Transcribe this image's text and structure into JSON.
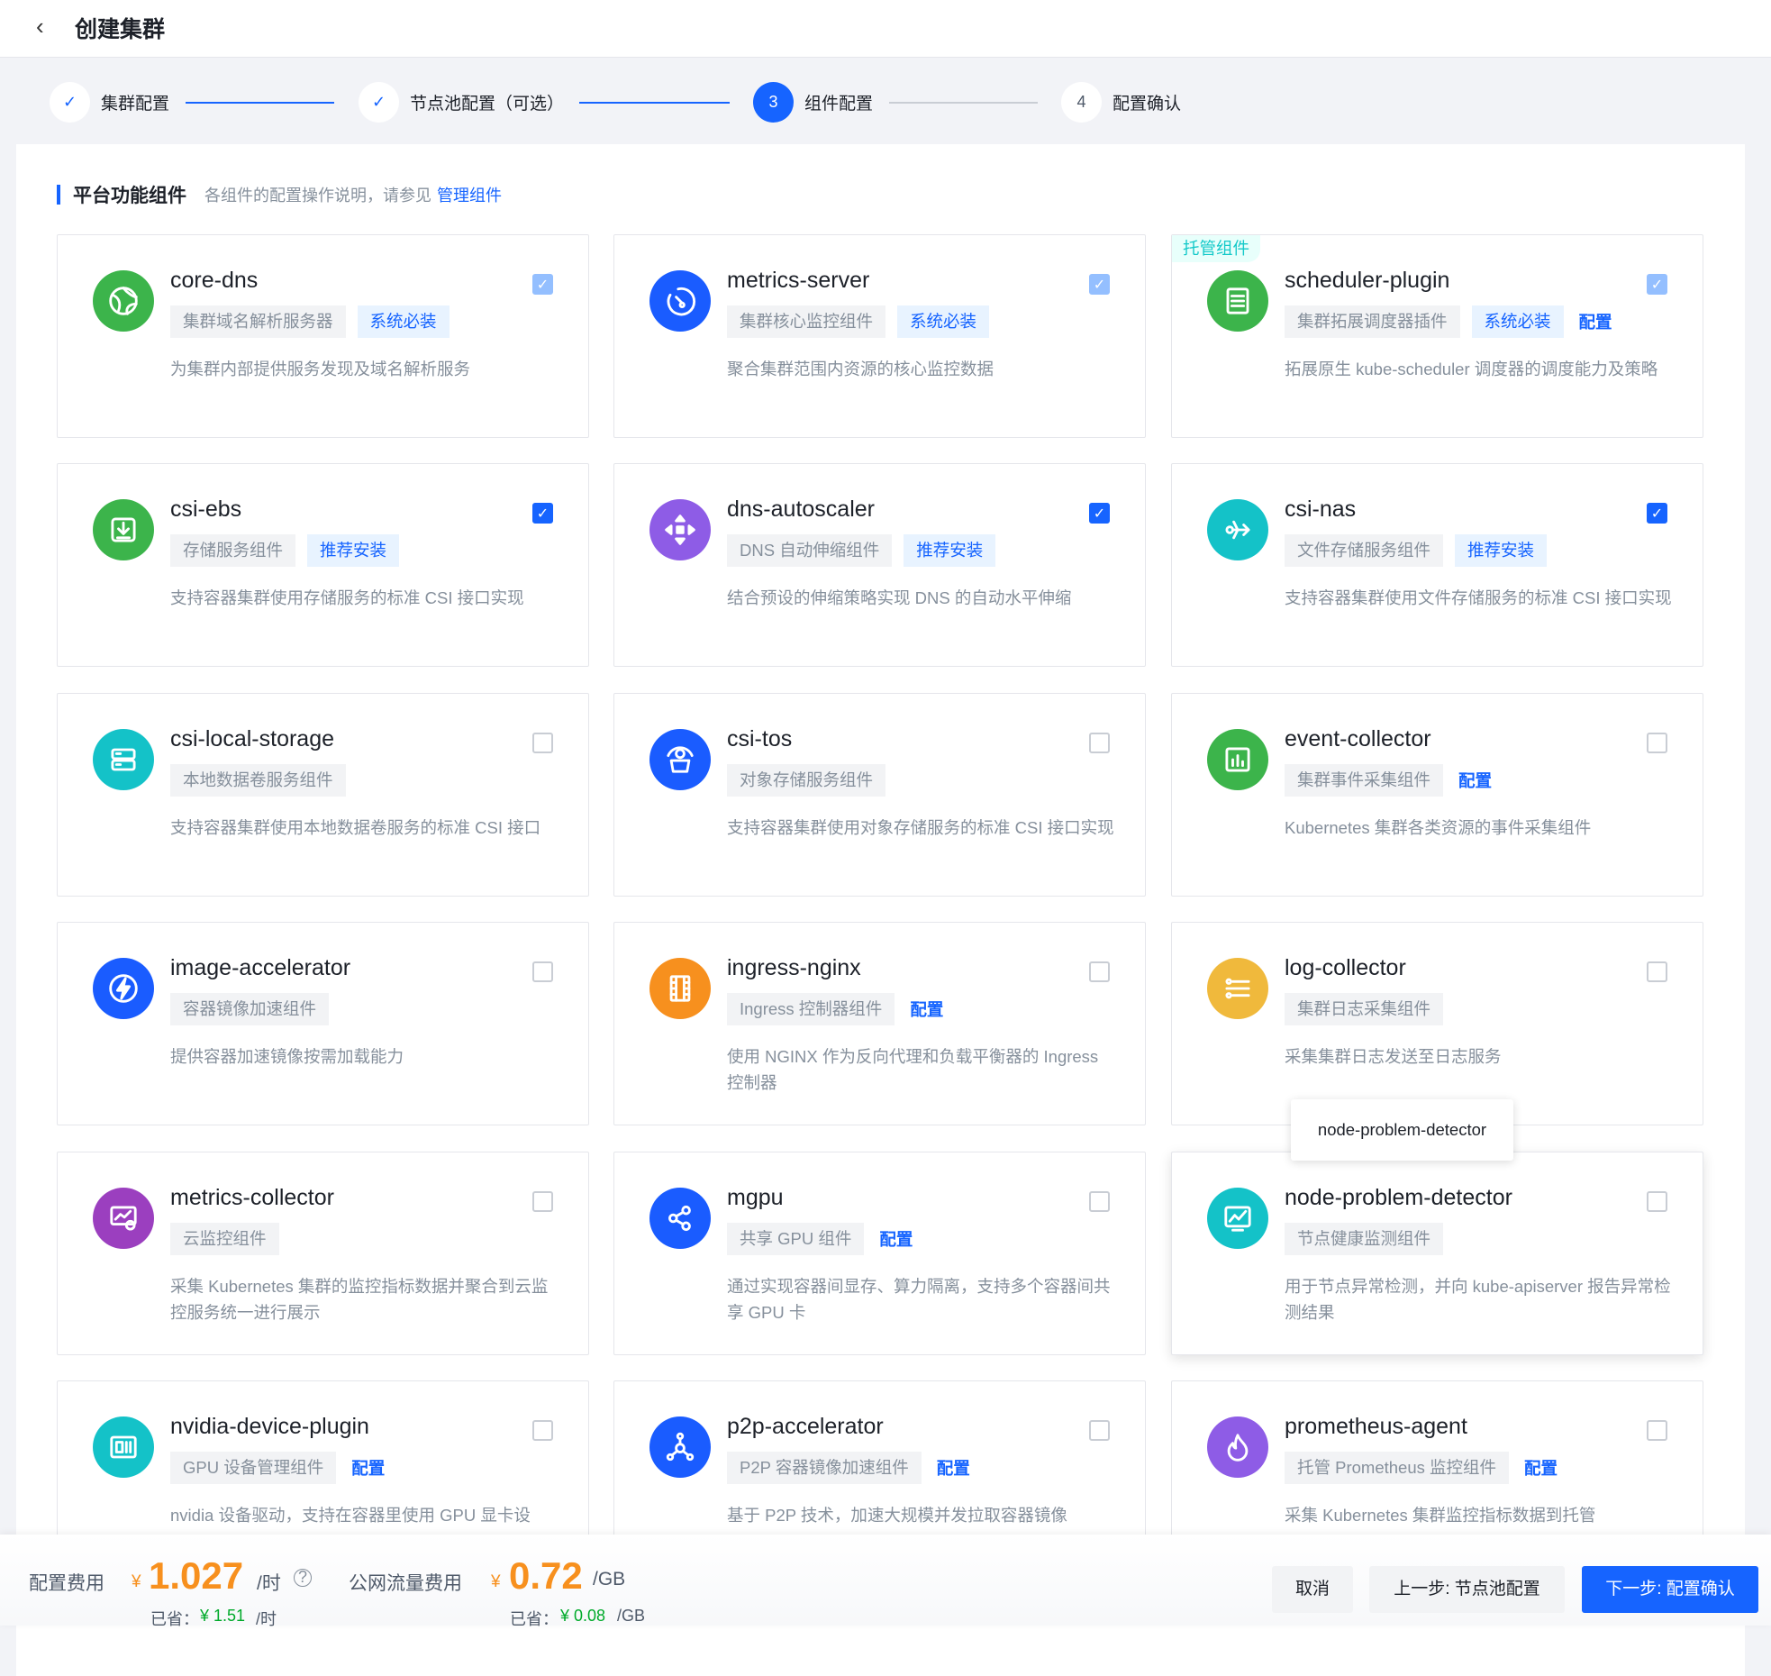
{
  "header": {
    "title": "创建集群",
    "back_icon": "chevron-left-icon"
  },
  "steps": [
    {
      "num": "✓",
      "label": "集群配置",
      "status": "done"
    },
    {
      "num": "✓",
      "label": "节点池配置（可选）",
      "status": "done"
    },
    {
      "num": "3",
      "label": "组件配置",
      "status": "active"
    },
    {
      "num": "4",
      "label": "配置确认",
      "status": "todo"
    }
  ],
  "section": {
    "title": "平台功能组件",
    "desc": "各组件的配置操作说明，请参见",
    "link": "管理组件"
  },
  "colors": {
    "primary": "#1664ff",
    "green": "#3cb44b",
    "blue": "#1a5cff",
    "purple": "#8e5ce6",
    "cyan": "#14c2c8",
    "orange": "#f7901e",
    "yellow": "#f0b93c",
    "magenta": "#9b3fbf"
  },
  "cards": [
    {
      "name": "core-dns",
      "tag": "集群域名解析服务器",
      "badge": "系统必装",
      "desc": "为集群内部提供服务发现及域名解析服务",
      "check": "disabled",
      "color": "green",
      "icon": "globe-icon"
    },
    {
      "name": "metrics-server",
      "tag": "集群核心监控组件",
      "badge": "系统必装",
      "desc": "聚合集群范围内资源的核心监控数据",
      "check": "disabled",
      "color": "blue",
      "icon": "gauge-icon"
    },
    {
      "name": "scheduler-plugin",
      "corner": "托管组件",
      "tag": "集群拓展调度器插件",
      "badge": "系统必装",
      "config": "配置",
      "desc": "拓展原生 kube-scheduler 调度器的调度能力及策略",
      "check": "disabled",
      "color": "green",
      "icon": "scheduler-icon"
    },
    {
      "name": "csi-ebs",
      "tag": "存储服务组件",
      "badge": "推荐安装",
      "desc": "支持容器集群使用存储服务的标准 CSI 接口实现",
      "check": "on",
      "color": "green",
      "icon": "download-box-icon"
    },
    {
      "name": "dns-autoscaler",
      "tag": "DNS 自动伸缩组件",
      "badge": "推荐安装",
      "desc": "结合预设的伸缩策略实现 DNS 的自动水平伸缩",
      "check": "on",
      "color": "purple",
      "icon": "arrows-expand-icon"
    },
    {
      "name": "csi-nas",
      "tag": "文件存储服务组件",
      "badge": "推荐安装",
      "desc": "支持容器集群使用文件存储服务的标准 CSI 接口实现",
      "check": "on",
      "color": "cyan",
      "icon": "branch-icon"
    },
    {
      "name": "csi-local-storage",
      "tag": "本地数据卷服务组件",
      "desc": "支持容器集群使用本地数据卷服务的标准 CSI 接口",
      "check": "off",
      "color": "cyan",
      "icon": "server-icon"
    },
    {
      "name": "csi-tos",
      "tag": "对象存储服务组件",
      "desc": "支持容器集群使用对象存储服务的标准 CSI 接口实现",
      "check": "off",
      "color": "blue",
      "icon": "bucket-icon"
    },
    {
      "name": "event-collector",
      "tag": "集群事件采集组件",
      "config": "配置",
      "desc": "Kubernetes 集群各类资源的事件采集组件",
      "check": "off",
      "color": "green",
      "icon": "chart-box-icon"
    },
    {
      "name": "image-accelerator",
      "tag": "容器镜像加速组件",
      "desc": "提供容器加速镜像按需加载能力",
      "check": "off",
      "color": "blue",
      "icon": "lightning-icon"
    },
    {
      "name": "ingress-nginx",
      "tag": "Ingress 控制器组件",
      "config": "配置",
      "desc": "使用 NGINX 作为反向代理和负载平衡器的 Ingress 控制器",
      "check": "off",
      "color": "orange",
      "icon": "film-icon"
    },
    {
      "name": "log-collector",
      "tag": "集群日志采集组件",
      "desc": "采集集群日志发送至日志服务",
      "check": "off",
      "color": "yellow",
      "icon": "list-icon"
    },
    {
      "name": "metrics-collector",
      "tag": "云监控组件",
      "desc": "采集 Kubernetes 集群的监控指标数据并聚合到云监控服务统一进行展示",
      "check": "off",
      "color": "magenta",
      "icon": "monitor-eye-icon"
    },
    {
      "name": "mgpu",
      "tag": "共享 GPU 组件",
      "config": "配置",
      "desc": "通过实现容器间显存、算力隔离，支持多个容器间共享 GPU 卡",
      "check": "off",
      "color": "blue",
      "icon": "share-icon"
    },
    {
      "name": "node-problem-detector",
      "tag": "节点健康监测组件",
      "desc": "用于节点异常检测，并向 kube-apiserver 报告异常检测结果",
      "check": "off",
      "color": "cyan",
      "icon": "monitor-chart-icon",
      "hover": true
    },
    {
      "name": "nvidia-device-plugin",
      "tag": "GPU 设备管理组件",
      "config": "配置",
      "desc": "nvidia 设备驱动，支持在容器里使用 GPU 显卡设",
      "check": "off",
      "color": "cyan",
      "icon": "gpu-card-icon"
    },
    {
      "name": "p2p-accelerator",
      "tag": "P2P 容器镜像加速组件",
      "config": "配置",
      "desc": "基于 P2P 技术，加速大规模并发拉取容器镜像",
      "check": "off",
      "color": "blue",
      "icon": "network-icon"
    },
    {
      "name": "prometheus-agent",
      "tag": "托管 Prometheus 监控组件",
      "config": "配置",
      "desc": "采集 Kubernetes 集群监控指标数据到托管",
      "check": "off",
      "color": "purple",
      "icon": "flame-icon"
    }
  ],
  "tooltip": "node-problem-detector",
  "footer": {
    "cost_label": "配置费用",
    "cost_currency": "¥",
    "cost_value": "1.027",
    "cost_unit": "/时",
    "traffic_label": "公网流量费用",
    "traffic_currency": "¥",
    "traffic_value": "0.72",
    "traffic_unit": "/GB",
    "saved1_label": "已省：",
    "saved1_value": "¥ 1.51",
    "saved1_unit": "/时",
    "saved2_label": "已省：",
    "saved2_value": "¥ 0.08",
    "saved2_unit": "/GB",
    "cancel": "取消",
    "prev": "上一步: 节点池配置",
    "next": "下一步: 配置确认"
  }
}
